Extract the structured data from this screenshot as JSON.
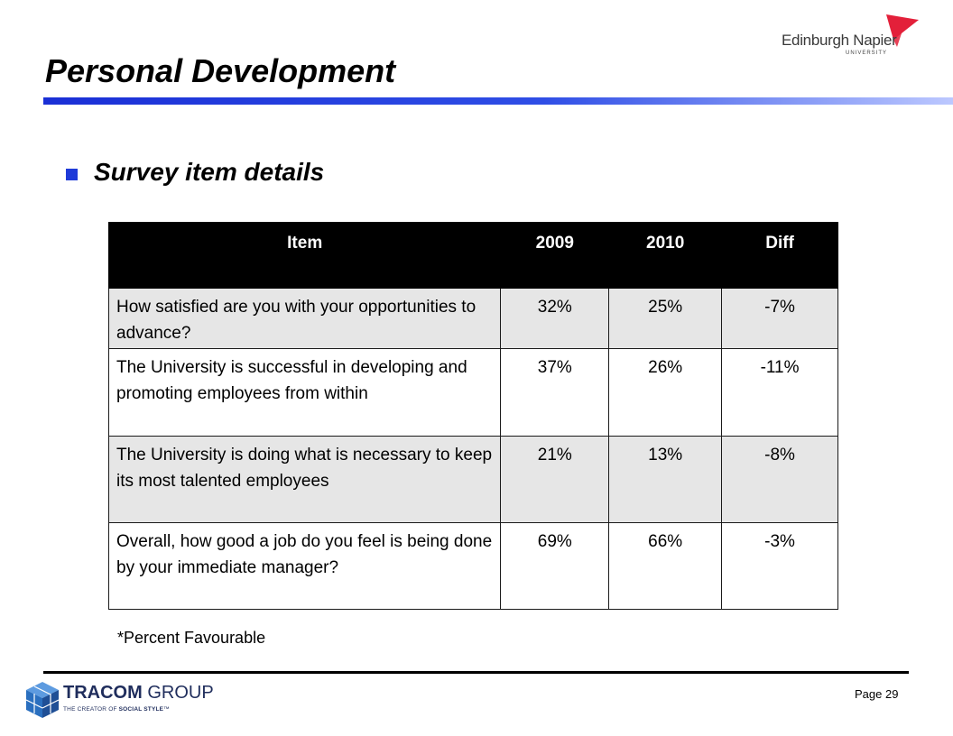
{
  "header": {
    "logo_name": "Edinburgh Napier",
    "logo_sub": "UNIVERSITY"
  },
  "title": "Personal Development",
  "section": {
    "heading": "Survey item details"
  },
  "table": {
    "columns": [
      "Item",
      "2009",
      "2010",
      "Diff"
    ],
    "rows": [
      {
        "item": "How satisfied are you with your opportunities to advance?",
        "y2009": "32%",
        "y2010": "25%",
        "diff": "-7%"
      },
      {
        "item": "The University is successful in developing and promoting employees from within",
        "y2009": "37%",
        "y2010": "26%",
        "diff": "-11%"
      },
      {
        "item": "The University is doing what is necessary to keep its most talented employees",
        "y2009": "21%",
        "y2010": "13%",
        "diff": "-8%"
      },
      {
        "item": "Overall, how good a job do you feel is being done by your immediate manager?",
        "y2009": "69%",
        "y2010": "66%",
        "diff": "-3%"
      }
    ]
  },
  "footnote": "*Percent Favourable",
  "footer": {
    "brand_bold": "TRACOM",
    "brand_light": " GROUP",
    "tagline_prefix": "THE CREATOR OF ",
    "tagline_bold": "SOCIAL STYLE",
    "tagline_suffix": "™",
    "page_label": "Page 29"
  },
  "colors": {
    "title_bar": "#1a2fd6",
    "bullet": "#1f3bd8",
    "header_row": "#000000",
    "shaded_row": "#e6e6e6",
    "logo_red": "#e3203a",
    "brand_blue": "#2a6fbf"
  },
  "icons": {
    "university_logo": "red-flag-icon",
    "brand_logo": "cube-icon",
    "bullet": "square-bullet-icon"
  }
}
